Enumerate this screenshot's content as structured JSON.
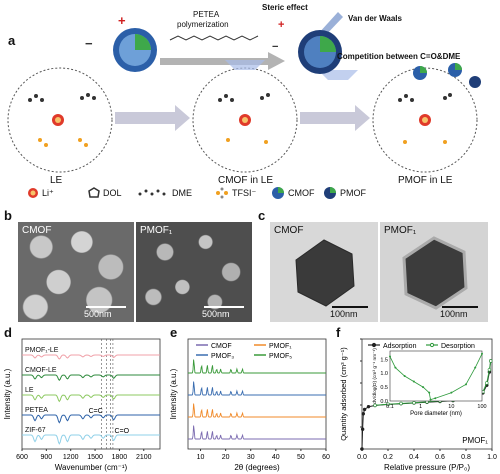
{
  "panels": {
    "a": {
      "letter": "a",
      "petea_label_line1": "PETEA",
      "petea_label_line2": "polymerization",
      "steric_label": "Steric effect",
      "vdw_label": "Van der Waals",
      "competition_label": "Competition between C=O&DME",
      "state_labels": [
        "LE",
        "CMOF in LE",
        "PMOF in LE"
      ],
      "legend": [
        {
          "icon": "li-ion-icon",
          "label": "Li⁺"
        },
        {
          "icon": "dol-molecule-icon",
          "label": "DOL"
        },
        {
          "icon": "dme-molecule-icon",
          "label": "DME"
        },
        {
          "icon": "tfsi-anion-icon",
          "label": "TFSI⁻"
        },
        {
          "icon": "cmof-particle-icon",
          "label": "CMOF"
        },
        {
          "icon": "pmof-particle-icon",
          "label": "PMOF"
        }
      ],
      "plus_sign": "+",
      "minus_sign": "−"
    },
    "b": {
      "letter": "b",
      "images": [
        {
          "label": "CMOF",
          "scale": "500nm"
        },
        {
          "label": "PMOF₁",
          "scale": "500nm"
        }
      ]
    },
    "c": {
      "letter": "c",
      "images": [
        {
          "label": "CMOF",
          "scale": "100nm"
        },
        {
          "label": "PMOF₁",
          "scale": "100nm"
        }
      ]
    },
    "d": {
      "letter": "d"
    },
    "e": {
      "letter": "e"
    },
    "f": {
      "letter": "f"
    }
  },
  "chart_data": [
    {
      "type": "line",
      "panel": "d",
      "xlabel": "Wavenumber (cm⁻¹)",
      "ylabel": "Intensity (a.u.)",
      "xlim": [
        600,
        2300
      ],
      "x_ticks": [
        600,
        900,
        1200,
        1500,
        1800,
        2100
      ],
      "annotations": [
        "C=C",
        "C=O"
      ],
      "marker_lines_x": [
        1580,
        1640,
        1690,
        1720
      ],
      "series": [
        {
          "name": "PMOF₁-LE",
          "color": "#f0a0a8",
          "offset": 4
        },
        {
          "name": "CMOF-LE",
          "color": "#2e8a3c",
          "offset": 3
        },
        {
          "name": "LE",
          "color": "#8cc860",
          "offset": 2
        },
        {
          "name": "PETEA",
          "color": "#2d62a8",
          "offset": 1
        },
        {
          "name": "ZIF-67",
          "color": "#8fd0e8",
          "offset": 0
        }
      ]
    },
    {
      "type": "line",
      "panel": "e",
      "xlabel": "2θ (degrees)",
      "ylabel": "Intensity (a.u.)",
      "xlim": [
        5,
        60
      ],
      "x_ticks": [
        10,
        20,
        30,
        40,
        50,
        60
      ],
      "series": [
        {
          "name": "CMOF",
          "color": "#7b6bb0",
          "offset": 0
        },
        {
          "name": "PMOF₁",
          "color": "#f08a2a",
          "offset": 1
        },
        {
          "name": "PMOF₃",
          "color": "#3a6db0",
          "offset": 2
        },
        {
          "name": "PMOF₅",
          "color": "#3a9a3a",
          "offset": 3
        }
      ],
      "peaks_2theta": [
        7.3,
        10.4,
        12.7,
        14.7,
        16.4,
        18.0,
        22.1,
        24.5,
        26.7
      ]
    },
    {
      "type": "line",
      "panel": "f",
      "xlabel": "Relative pressure (P/P₀)",
      "ylabel": "Quantity adsorbed (cm³ g⁻¹)",
      "xlim": [
        0.0,
        1.0
      ],
      "ylim": [
        0,
        1000
      ],
      "x_ticks": [
        0.0,
        0.2,
        0.4,
        0.6,
        0.8,
        1.0
      ],
      "y_ticks": [
        0,
        200,
        400,
        600,
        800,
        1000
      ],
      "legend": [
        "Adsorption",
        "Desorption"
      ],
      "sample_label": "PMOF₁",
      "series": [
        {
          "name": "Adsorption",
          "color": "#222222",
          "x": [
            0.0,
            0.005,
            0.01,
            0.02,
            0.05,
            0.1,
            0.2,
            0.3,
            0.4,
            0.5,
            0.6,
            0.7,
            0.8,
            0.85,
            0.9,
            0.93,
            0.96,
            0.98,
            0.99
          ],
          "y": [
            0,
            180,
            320,
            360,
            385,
            395,
            405,
            412,
            418,
            425,
            432,
            440,
            452,
            462,
            480,
            510,
            580,
            700,
            800
          ]
        },
        {
          "name": "Desorption",
          "color": "#2e9a3c",
          "x": [
            0.99,
            0.98,
            0.96,
            0.93,
            0.9,
            0.85,
            0.8,
            0.7,
            0.6,
            0.5,
            0.4,
            0.3,
            0.2,
            0.1
          ],
          "y": [
            800,
            720,
            600,
            520,
            488,
            468,
            456,
            444,
            436,
            428,
            420,
            414,
            407,
            397
          ]
        }
      ],
      "inset": {
        "xlabel": "Pore diameter (nm)",
        "ylabel": "dV/dlog(D) (cm³ g⁻¹ nm⁻¹)",
        "x_ticks": [
          "0.1",
          "1",
          "10",
          "100"
        ],
        "y_ticks": [
          "0.0",
          "0.5",
          "1.0",
          "1.5"
        ],
        "x": [
          0.1,
          0.15,
          0.3,
          0.6,
          1.2,
          1.9,
          2.1,
          3,
          10,
          30,
          60,
          100
        ],
        "y": [
          1.6,
          1.2,
          0.9,
          0.7,
          0.5,
          0.3,
          0.05,
          0.1,
          0.3,
          0.6,
          1.2,
          1.7
        ]
      }
    }
  ]
}
